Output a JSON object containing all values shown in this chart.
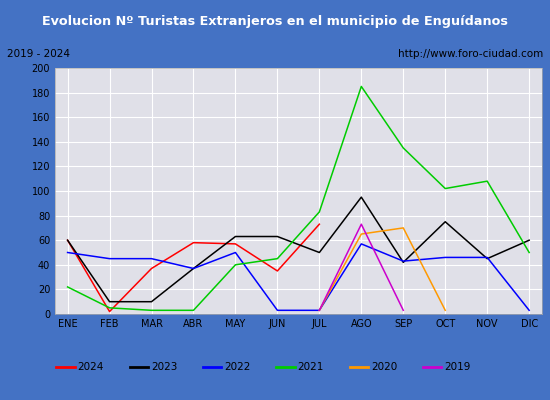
{
  "title": "Evolucion Nº Turistas Extranjeros en el municipio de Enguídanos",
  "subtitle_left": "2019 - 2024",
  "subtitle_right": "http://www.foro-ciudad.com",
  "months": [
    "ENE",
    "FEB",
    "MAR",
    "ABR",
    "MAY",
    "JUN",
    "JUL",
    "AGO",
    "SEP",
    "OCT",
    "NOV",
    "DIC"
  ],
  "ylim": [
    0,
    200
  ],
  "yticks": [
    0,
    20,
    40,
    60,
    80,
    100,
    120,
    140,
    160,
    180,
    200
  ],
  "series": {
    "2024": {
      "color": "#ff0000",
      "values": [
        60,
        2,
        37,
        58,
        57,
        35,
        73,
        null,
        null,
        null,
        null,
        null
      ]
    },
    "2023": {
      "color": "#000000",
      "values": [
        60,
        10,
        10,
        37,
        63,
        63,
        50,
        95,
        42,
        75,
        45,
        60
      ]
    },
    "2022": {
      "color": "#0000ff",
      "values": [
        50,
        45,
        45,
        37,
        50,
        3,
        3,
        57,
        43,
        46,
        46,
        3
      ]
    },
    "2021": {
      "color": "#00cc00",
      "values": [
        22,
        5,
        3,
        3,
        40,
        45,
        83,
        185,
        135,
        102,
        108,
        50
      ]
    },
    "2020": {
      "color": "#ff9900",
      "values": [
        null,
        null,
        null,
        null,
        null,
        null,
        3,
        65,
        70,
        3,
        null,
        null
      ]
    },
    "2019": {
      "color": "#cc00cc",
      "values": [
        null,
        null,
        null,
        null,
        null,
        null,
        3,
        73,
        3,
        null,
        null,
        null
      ]
    }
  },
  "title_bg": "#4472c4",
  "title_color": "#ffffff",
  "plot_bg": "#e0e0e8",
  "grid_color": "#ffffff",
  "legend_order": [
    "2024",
    "2023",
    "2022",
    "2021",
    "2020",
    "2019"
  ]
}
